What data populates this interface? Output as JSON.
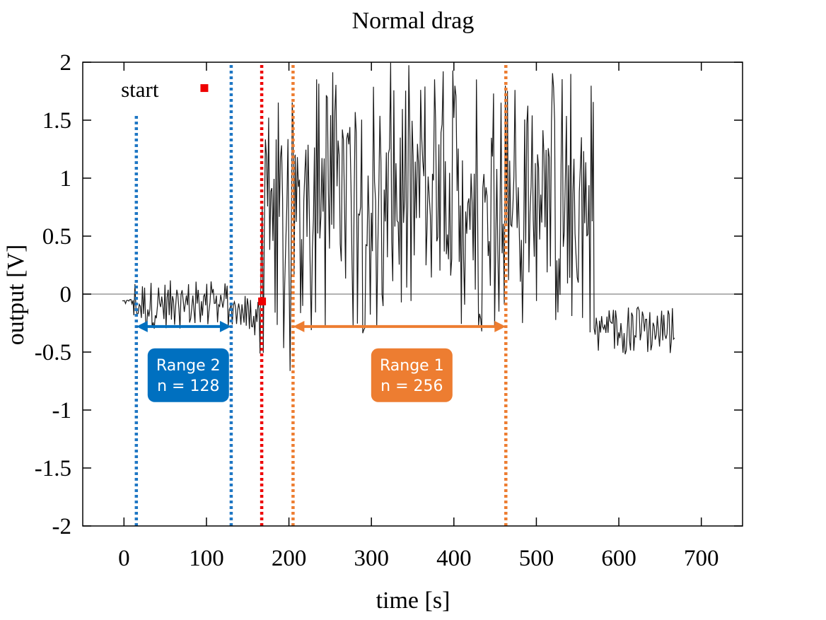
{
  "chart_data": {
    "type": "line",
    "title": "Normal drag",
    "xlabel": "time [s]",
    "ylabel": "output [V]",
    "xlim": [
      -50,
      750
    ],
    "ylim": [
      -2,
      2
    ],
    "xticks": [
      0,
      100,
      200,
      300,
      400,
      500,
      600,
      700
    ],
    "yticks": [
      2,
      1.5,
      1,
      0.5,
      0,
      -0.5,
      -1,
      -1.5,
      -2
    ],
    "xtick_labels": [
      "0",
      "100",
      "200",
      "300",
      "400",
      "500",
      "600",
      "700"
    ],
    "ytick_labels": [
      "2",
      "1.5",
      "1",
      "0.5",
      "0",
      "-0.5",
      "-1",
      "-1.5",
      "-2"
    ],
    "grid": false,
    "zero_line": true,
    "series": [
      {
        "color": "#1a1a1a",
        "segments": [
          {
            "x0": -2,
            "x1": 12,
            "lo": -0.09,
            "hi": -0.04,
            "noise": 0.03
          },
          {
            "x0": 12,
            "x1": 130,
            "lo": -0.3,
            "hi": 0.12,
            "noise": 0.13
          },
          {
            "x0": 130,
            "x1": 165,
            "lo": -0.38,
            "hi": 0.02,
            "noise": 0.12
          },
          {
            "x0": 165,
            "x1": 205,
            "lo": -0.8,
            "hi": 1.7,
            "noise": 0.9
          },
          {
            "x0": 205,
            "x1": 570,
            "lo": -0.35,
            "hi": 2.0,
            "noise": 0.55
          },
          {
            "x0": 570,
            "x1": 668,
            "lo": -0.52,
            "hi": -0.1,
            "noise": 0.09
          }
        ]
      }
    ],
    "start_marker": {
      "label": "start",
      "x": 97,
      "y": 1.78,
      "color": "#ee0000"
    },
    "red_marker": {
      "x": 167,
      "y": -0.06,
      "color": "#ee0000"
    },
    "vlines": [
      {
        "x": 15,
        "y0": -2,
        "y1": 1.55,
        "color": "#1f77c4",
        "style": "dotted"
      },
      {
        "x": 130,
        "y0": -2,
        "y1": 2,
        "color": "#1f77c4",
        "style": "dotted"
      },
      {
        "x": 167,
        "y0": -2,
        "y1": 2,
        "color": "#ee0000",
        "style": "dotted"
      },
      {
        "x": 205,
        "y0": -2,
        "y1": 2,
        "color": "#ed7d31",
        "style": "dotted"
      },
      {
        "x": 463,
        "y0": -2,
        "y1": 2,
        "color": "#ed7d31",
        "style": "dotted"
      }
    ],
    "ranges": [
      {
        "label_line1": "Range 2",
        "label_line2": "n = 128",
        "x0": 15,
        "x1": 130,
        "y": -0.28,
        "color": "#0070c0",
        "box_center_x": 78,
        "box_center_y": -0.7
      },
      {
        "label_line1": "Range 1",
        "label_line2": "n = 256",
        "x0": 205,
        "x1": 463,
        "y": -0.28,
        "color": "#ed7d31",
        "box_center_x": 349,
        "box_center_y": -0.7
      }
    ]
  }
}
